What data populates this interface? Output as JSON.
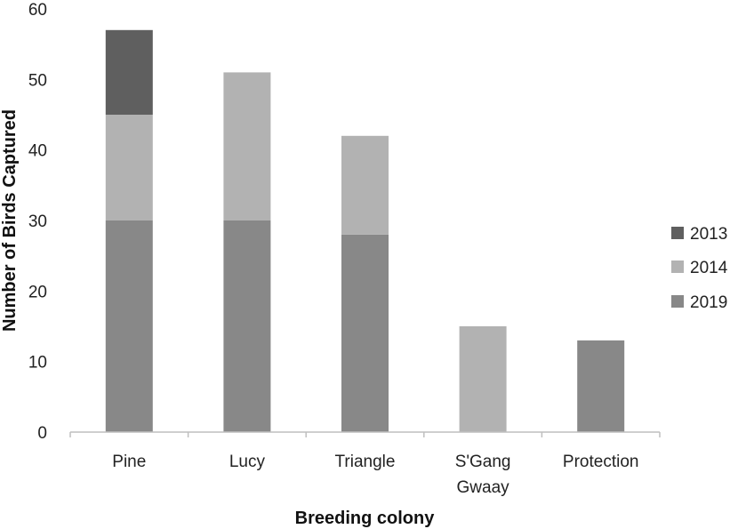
{
  "chart_data": {
    "type": "bar",
    "stacked": true,
    "categories": [
      [
        "Pine"
      ],
      [
        "Lucy"
      ],
      [
        "Triangle"
      ],
      [
        "S'Gang",
        "Gwaay"
      ],
      [
        "Protection"
      ]
    ],
    "series": [
      {
        "name": "2019",
        "color": "#888888",
        "values": [
          30,
          30,
          28,
          0,
          13
        ]
      },
      {
        "name": "2014",
        "color": "#b2b2b2",
        "values": [
          15,
          21,
          14,
          15,
          0
        ]
      },
      {
        "name": "2013",
        "color": "#5f5f5f",
        "values": [
          12,
          0,
          0,
          0,
          0
        ]
      }
    ],
    "legend_order": [
      "2013",
      "2014",
      "2019"
    ],
    "legend_position": "right",
    "xlabel": "Breeding colony",
    "ylabel": "Number of Birds Captured",
    "ylim": [
      0,
      60
    ],
    "yticks": [
      0,
      10,
      20,
      30,
      40,
      50,
      60
    ],
    "grid": false
  }
}
